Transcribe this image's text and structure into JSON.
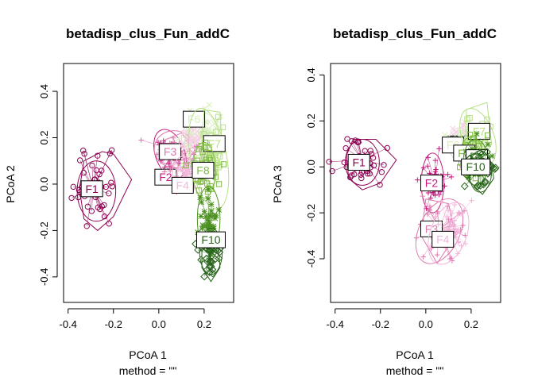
{
  "colors": {
    "F1": "#8e0152",
    "F2": "#c51b7d",
    "F3": "#de77ae",
    "F4": "#f1b6da",
    "F5": "#f4cfe4",
    "F6": "#d9efc0",
    "F7": "#b8e186",
    "F8": "#7fbc41",
    "F9": "#4d9221",
    "F10": "#276419"
  },
  "chart_data": [
    {
      "type": "scatter",
      "title": "betadisp_clus_Fun_addC",
      "xlabel": "PCoA 1",
      "sublabel": "method = \"\"",
      "ylabel": "PCoA 2",
      "xlim": [
        -0.42,
        0.33
      ],
      "ylim": [
        -0.51,
        0.52
      ],
      "xticks": [
        "-0.4",
        "-0.2",
        "0.0",
        "0.2"
      ],
      "xtick_values": [
        -0.4,
        -0.2,
        0.0,
        0.2
      ],
      "yticks": [
        "-0.4",
        "-0.2",
        "0.0",
        "0.2",
        "0.4"
      ],
      "ytick_values": [
        -0.4,
        -0.2,
        0.0,
        0.2,
        0.4
      ],
      "series": [
        {
          "name": "F1",
          "marker": "circle",
          "center": [
            -0.29,
            -0.02
          ],
          "spread": [
            0.045,
            0.075
          ],
          "ellipse": [
            -0.275,
            -0.03,
            0.085,
            0.13,
            0
          ],
          "hull": [
            [
              -0.33,
              0.1
            ],
            [
              -0.25,
              0.14
            ],
            [
              -0.2,
              0.13
            ],
            [
              -0.12,
              0.02
            ],
            [
              -0.2,
              -0.14
            ],
            [
              -0.27,
              -0.2
            ],
            [
              -0.33,
              -0.15
            ],
            [
              -0.35,
              -0.02
            ]
          ],
          "label": "F1",
          "label_pos": [
            -0.295,
            -0.02
          ]
        },
        {
          "name": "F2",
          "marker": "plus",
          "center": [
            0.05,
            0.12
          ],
          "spread": [
            0.03,
            0.04
          ],
          "ellipse": [
            0.05,
            0.13,
            0.065,
            0.11,
            -20
          ],
          "hull": [],
          "label": "F2",
          "label_pos": [
            0.03,
            0.03
          ]
        },
        {
          "name": "F3",
          "marker": "plus",
          "center": [
            0.09,
            0.14
          ],
          "spread": [
            0.04,
            0.04
          ],
          "ellipse": [
            0.07,
            0.15,
            0.09,
            0.08,
            10
          ],
          "hull": [
            [
              0.0,
              0.18
            ],
            [
              0.1,
              0.22
            ],
            [
              0.16,
              0.15
            ],
            [
              0.1,
              0.06
            ],
            [
              0.0,
              0.1
            ]
          ],
          "label": "F3",
          "label_pos": [
            0.05,
            0.14
          ]
        },
        {
          "name": "F4",
          "marker": "plus",
          "center": [
            0.12,
            0.04
          ],
          "spread": [
            0.03,
            0.03
          ],
          "ellipse": [
            0.11,
            0.05,
            0.05,
            0.07,
            0
          ],
          "hull": [],
          "label": "F4",
          "label_pos": [
            0.105,
            -0.005
          ]
        },
        {
          "name": "F5",
          "marker": "x",
          "center": [
            0.15,
            0.19
          ],
          "spread": [
            0.03,
            0.03
          ],
          "ellipse": [
            0.15,
            0.2,
            0.05,
            0.06,
            0
          ],
          "hull": [],
          "label": "",
          "label_pos": [
            0,
            0
          ]
        },
        {
          "name": "F6",
          "marker": "x",
          "center": [
            0.2,
            0.22
          ],
          "spread": [
            0.04,
            0.05
          ],
          "ellipse": [
            0.19,
            0.19,
            0.075,
            0.12,
            0
          ],
          "hull": [],
          "label": "F6",
          "label_pos": [
            0.155,
            0.28
          ]
        },
        {
          "name": "F7",
          "marker": "square",
          "center": [
            0.23,
            0.14
          ],
          "spread": [
            0.03,
            0.06
          ],
          "ellipse": [
            0.22,
            0.11,
            0.08,
            0.22,
            -10
          ],
          "hull": [
            [
              0.2,
              0.32
            ],
            [
              0.27,
              0.31
            ],
            [
              0.28,
              0.15
            ],
            [
              0.24,
              -0.02
            ],
            [
              0.18,
              0.02
            ]
          ],
          "label": "F7",
          "label_pos": [
            0.245,
            0.175
          ]
        },
        {
          "name": "F8",
          "marker": "square",
          "center": [
            0.2,
            0.07
          ],
          "spread": [
            0.03,
            0.05
          ],
          "ellipse": [
            0.2,
            0.06,
            0.05,
            0.12,
            0
          ],
          "hull": [],
          "label": "F8",
          "label_pos": [
            0.195,
            0.06
          ]
        },
        {
          "name": "F9",
          "marker": "star",
          "center": [
            0.22,
            -0.16
          ],
          "spread": [
            0.025,
            0.06
          ],
          "ellipse": [
            0.22,
            -0.15,
            0.05,
            0.14,
            0
          ],
          "hull": [],
          "label": "",
          "label_pos": [
            0,
            0
          ]
        },
        {
          "name": "F10",
          "marker": "diamond",
          "center": [
            0.225,
            -0.3
          ],
          "spread": [
            0.025,
            0.045
          ],
          "ellipse": [
            0.23,
            -0.29,
            0.05,
            0.1,
            0
          ],
          "hull": [
            [
              0.19,
              -0.22
            ],
            [
              0.26,
              -0.23
            ],
            [
              0.27,
              -0.36
            ],
            [
              0.23,
              -0.42
            ],
            [
              0.19,
              -0.36
            ]
          ],
          "label": "F10",
          "label_pos": [
            0.23,
            -0.24
          ]
        }
      ]
    },
    {
      "type": "scatter",
      "title": "betadisp_clus_Fun_addC",
      "xlabel": "PCoA 1",
      "sublabel": "method = \"\"",
      "ylabel": "PCoA 3",
      "xlim": [
        -0.42,
        0.33
      ],
      "ylim": [
        -0.59,
        0.45
      ],
      "xticks": [
        "-0.4",
        "-0.2",
        "0.0",
        "0.2"
      ],
      "xtick_values": [
        -0.4,
        -0.2,
        0.0,
        0.2
      ],
      "yticks": [
        "-0.4",
        "-0.2",
        "0.0",
        "0.2",
        "0.4"
      ],
      "ytick_values": [
        -0.4,
        -0.2,
        0.0,
        0.2,
        0.4
      ],
      "series": [
        {
          "name": "F1",
          "marker": "circle",
          "center": [
            -0.28,
            0.03
          ],
          "spread": [
            0.045,
            0.045
          ],
          "ellipse": [
            -0.28,
            0.02,
            0.075,
            0.1,
            0
          ],
          "hull": [
            [
              -0.32,
              0.12
            ],
            [
              -0.22,
              0.12
            ],
            [
              -0.13,
              0.03
            ],
            [
              -0.2,
              -0.07
            ],
            [
              -0.28,
              -0.1
            ],
            [
              -0.34,
              -0.05
            ],
            [
              -0.35,
              0.05
            ]
          ],
          "label": "F1",
          "label_pos": [
            -0.295,
            0.02
          ]
        },
        {
          "name": "F2",
          "marker": "plus",
          "center": [
            0.04,
            -0.07
          ],
          "spread": [
            0.03,
            0.06
          ],
          "ellipse": [
            0.03,
            -0.07,
            0.05,
            0.13,
            0
          ],
          "hull": [],
          "label": "F2",
          "label_pos": [
            0.025,
            -0.07
          ]
        },
        {
          "name": "F3",
          "marker": "plus",
          "center": [
            0.06,
            -0.27
          ],
          "spread": [
            0.05,
            0.07
          ],
          "ellipse": [
            0.06,
            -0.28,
            0.09,
            0.15,
            25
          ],
          "hull": [
            [
              0.0,
              -0.14
            ],
            [
              0.1,
              -0.16
            ],
            [
              0.13,
              -0.3
            ],
            [
              0.05,
              -0.42
            ],
            [
              -0.02,
              -0.3
            ]
          ],
          "label": "F3",
          "label_pos": [
            0.025,
            -0.27
          ]
        },
        {
          "name": "F4",
          "marker": "plus",
          "center": [
            0.1,
            -0.27
          ],
          "spread": [
            0.04,
            0.06
          ],
          "ellipse": [
            0.1,
            -0.29,
            0.08,
            0.14,
            20
          ],
          "hull": [],
          "label": "F4",
          "label_pos": [
            0.075,
            -0.315
          ]
        },
        {
          "name": "F5",
          "marker": "x",
          "center": [
            0.15,
            0.1
          ],
          "spread": [
            0.03,
            0.04
          ],
          "ellipse": [
            0.15,
            0.1,
            0.05,
            0.07,
            0
          ],
          "hull": [],
          "label": "F5",
          "label_pos": [
            0.145,
            0.1
          ]
        },
        {
          "name": "F6",
          "marker": "x",
          "center": [
            0.17,
            0.11
          ],
          "spread": [
            0.03,
            0.03
          ],
          "ellipse": [
            0.17,
            0.1,
            0.05,
            0.06,
            0
          ],
          "hull": [],
          "label": "F6",
          "label_pos": [
            0.12,
            0.095
          ]
        },
        {
          "name": "F7",
          "marker": "square",
          "center": [
            0.23,
            0.13
          ],
          "spread": [
            0.03,
            0.06
          ],
          "ellipse": [
            0.23,
            0.13,
            0.07,
            0.13,
            -20
          ],
          "hull": [
            [
              0.18,
              0.25
            ],
            [
              0.27,
              0.28
            ],
            [
              0.29,
              0.1
            ],
            [
              0.22,
              -0.02
            ],
            [
              0.17,
              0.05
            ]
          ],
          "label": "F7",
          "label_pos": [
            0.235,
            0.155
          ]
        },
        {
          "name": "F8",
          "marker": "square",
          "center": [
            0.2,
            0.06
          ],
          "spread": [
            0.03,
            0.04
          ],
          "ellipse": [
            0.2,
            0.05,
            0.05,
            0.08,
            0
          ],
          "hull": [],
          "label": "F8",
          "label_pos": [
            0.17,
            0.06
          ]
        },
        {
          "name": "F9",
          "marker": "star",
          "center": [
            0.22,
            0.02
          ],
          "spread": [
            0.03,
            0.05
          ],
          "ellipse": [
            0.22,
            0.02,
            0.055,
            0.1,
            0
          ],
          "hull": [],
          "label": "F9",
          "label_pos": [
            0.225,
            0.04
          ]
        },
        {
          "name": "F10",
          "marker": "diamond",
          "center": [
            0.24,
            -0.01
          ],
          "spread": [
            0.03,
            0.04
          ],
          "ellipse": [
            0.24,
            -0.02,
            0.05,
            0.09,
            0
          ],
          "hull": [
            [
              0.2,
              0.06
            ],
            [
              0.28,
              0.05
            ],
            [
              0.3,
              -0.05
            ],
            [
              0.25,
              -0.12
            ],
            [
              0.19,
              -0.06
            ]
          ],
          "label": "F10",
          "label_pos": [
            0.22,
            0.0
          ]
        }
      ]
    }
  ]
}
